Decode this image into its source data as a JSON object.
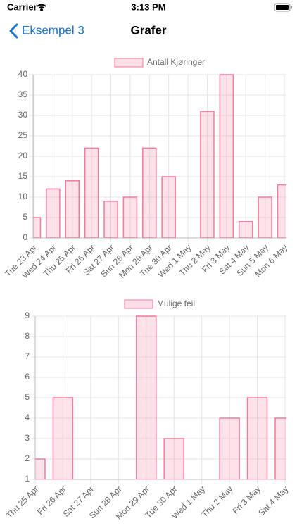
{
  "status_bar": {
    "carrier": "Carrier",
    "time": "3:13 PM"
  },
  "nav": {
    "back": "Eksempel 3",
    "title": "Grafer"
  },
  "chart_data": [
    {
      "type": "bar",
      "categories": [
        "Tue 23 Apr",
        "Wed 24 Apr",
        "Thu 25 Apr",
        "Fri 26 Apr",
        "Sat 27 Apr",
        "Sun 28 Apr",
        "Mon 29 Apr",
        "Tue 30 Apr",
        "Wed 1 May",
        "Thu 2 May",
        "Fri 3 May",
        "Sat 4 May",
        "Sun 5 May",
        "Mon 6 May"
      ],
      "series": [
        {
          "name": "Antall Kjøringer",
          "color": "#f47a9b",
          "values": [
            5,
            12,
            14,
            22,
            9,
            10,
            22,
            15,
            0,
            31,
            40,
            4,
            10,
            13
          ]
        }
      ],
      "ylim": [
        0,
        40
      ],
      "yticks": [
        0,
        5,
        10,
        15,
        20,
        25,
        30,
        35,
        40
      ],
      "grid": true
    },
    {
      "type": "bar",
      "categories": [
        "Thu 25 Apr",
        "Fri 26 Apr",
        "Sat 27 Apr",
        "Sun 28 Apr",
        "Mon 29 Apr",
        "Tue 30 Apr",
        "Wed 1 May",
        "Thu 2 May",
        "Fri 3 May",
        "Sat 4 May"
      ],
      "series": [
        {
          "name": "Mulige feil",
          "color": "#f47a9b",
          "values": [
            2,
            5,
            1,
            1,
            9,
            3,
            1,
            4,
            5,
            4
          ]
        }
      ],
      "ylim": [
        1,
        9
      ],
      "yticks": [
        1,
        2,
        3,
        4,
        5,
        6,
        7,
        8,
        9
      ],
      "grid": true
    }
  ]
}
